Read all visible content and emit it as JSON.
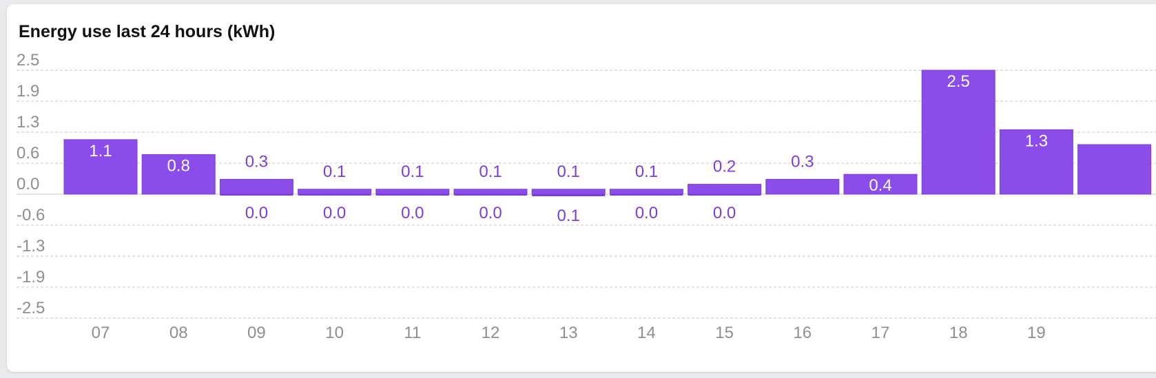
{
  "card": {
    "title": "Energy use last 24 hours (kWh)"
  },
  "colors": {
    "bar": "#8a4dea",
    "bar_border": "#7c3ed8",
    "label_inside": "#ffffff",
    "label_outside": "#7c3ed8",
    "grid": "#d3d3d3",
    "axis_text": "#8f8f8f"
  },
  "chart_data": {
    "type": "bar",
    "title": "Energy use last 24 hours (kWh)",
    "xlabel": "",
    "ylabel": "",
    "y_ticks": [
      "2.5",
      "1.9",
      "1.3",
      "0.6",
      "0.0",
      "-0.6",
      "-1.3",
      "-1.9",
      "-2.5"
    ],
    "ylim": [
      -2.5,
      2.5
    ],
    "grid": true,
    "categories": [
      "07",
      "08",
      "09",
      "10",
      "11",
      "12",
      "13",
      "14",
      "15",
      "16",
      "17",
      "18",
      "19"
    ],
    "series": [
      {
        "values": [
          1.1,
          0.8,
          0.3,
          0.1,
          0.1,
          0.1,
          0.1,
          0.1,
          0.2,
          0.3,
          0.4,
          2.5,
          1.3
        ],
        "labels": [
          "1.1",
          "0.8",
          "0.3",
          "0.1",
          "0.1",
          "0.1",
          "0.1",
          "0.1",
          "0.2",
          "0.3",
          "0.4",
          "2.5",
          "1.3"
        ]
      },
      {
        "values": [
          null,
          null,
          0.0,
          0.0,
          0.0,
          0.0,
          -0.1,
          0.0,
          0.0,
          null,
          null,
          null,
          null
        ],
        "labels": [
          "",
          "",
          "0.0",
          "0.0",
          "0.0",
          "0.0",
          "0.1",
          "0.0",
          "0.0",
          "",
          "",
          "",
          ""
        ]
      }
    ],
    "clipped_value": 1.0
  }
}
